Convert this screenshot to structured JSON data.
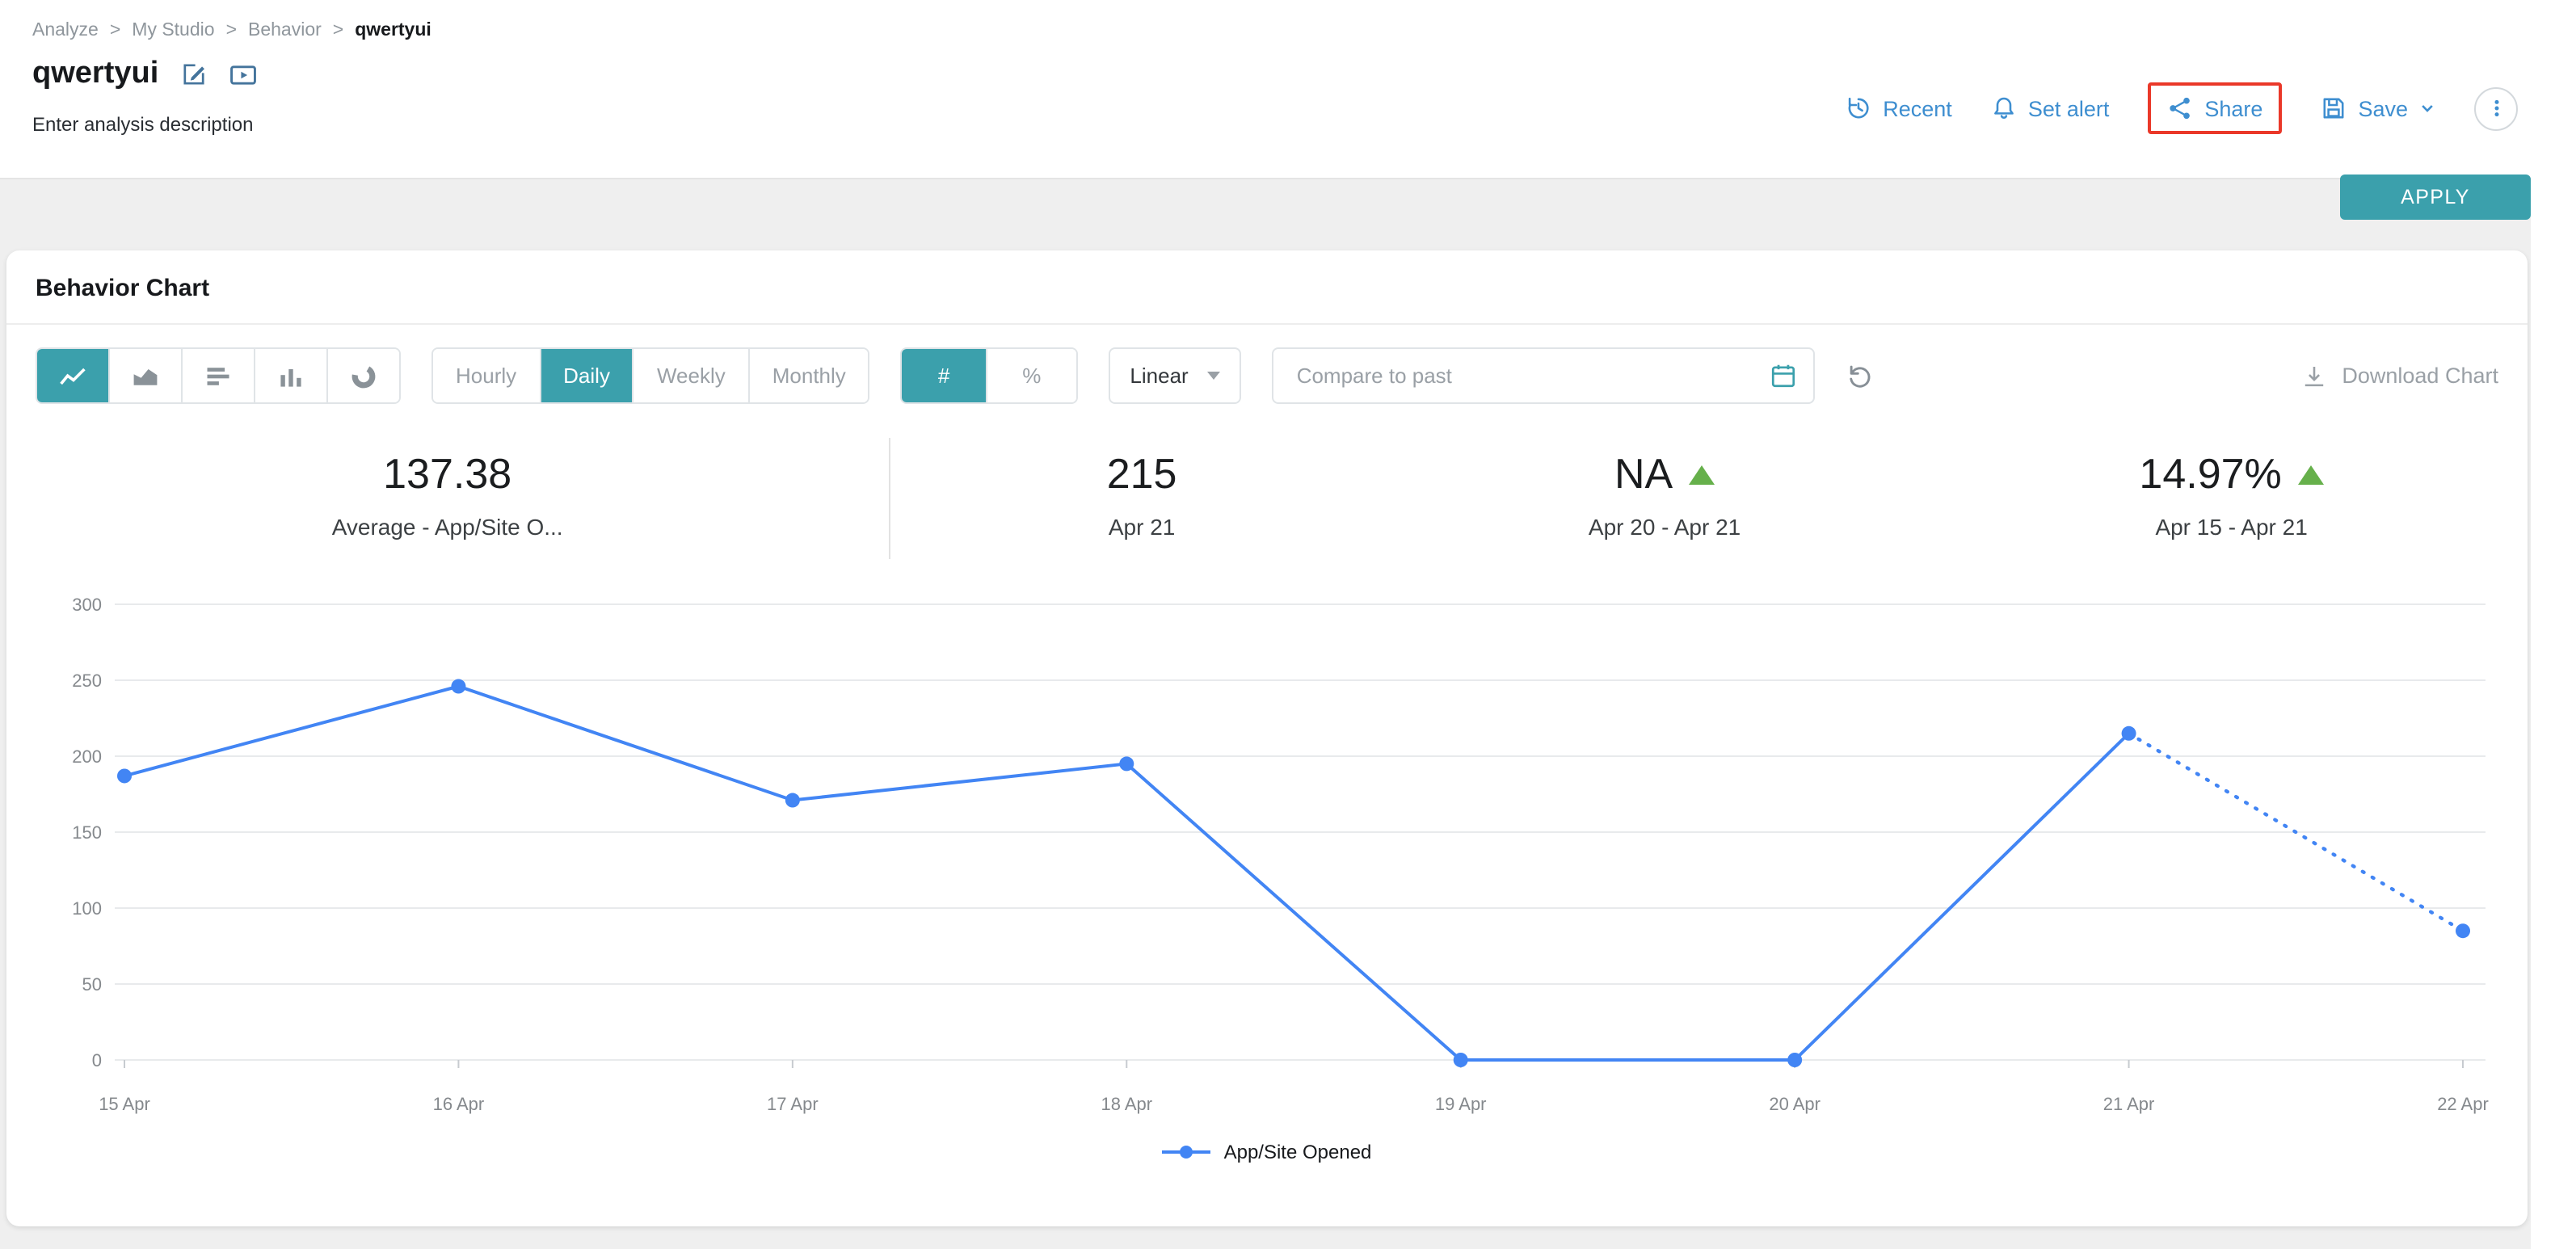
{
  "breadcrumb": {
    "items": [
      "Analyze",
      "My Studio",
      "Behavior",
      "qwertyui"
    ],
    "separator": ">"
  },
  "header": {
    "title": "qwertyui",
    "description": "Enter analysis description",
    "actions": {
      "recent": "Recent",
      "set_alert": "Set alert",
      "share": "Share",
      "save": "Save"
    }
  },
  "filter_bar": {
    "apply_label": "APPLY"
  },
  "chart_card": {
    "title": "Behavior Chart",
    "chart_types": [
      "line",
      "area",
      "horizontal-bar",
      "column",
      "donut"
    ],
    "chart_type_active": "line",
    "granularity": {
      "options": [
        "Hourly",
        "Daily",
        "Weekly",
        "Monthly"
      ],
      "active": "Daily"
    },
    "value_mode": {
      "options": [
        "#",
        "%"
      ],
      "active": "#"
    },
    "scale": "Linear",
    "compare_placeholder": "Compare to past",
    "download_label": "Download Chart"
  },
  "stats": [
    {
      "value": "137.38",
      "label": "Average - App/Site O...",
      "trend": null
    },
    {
      "value": "215",
      "label": "Apr 21",
      "trend": null
    },
    {
      "value": "NA",
      "label": "Apr 20 - Apr 21",
      "trend": "up"
    },
    {
      "value": "14.97%",
      "label": "Apr 15 - Apr 21",
      "trend": "up"
    }
  ],
  "chart_data": {
    "type": "line",
    "x": [
      "15 Apr",
      "16 Apr",
      "17 Apr",
      "18 Apr",
      "19 Apr",
      "20 Apr",
      "21 Apr",
      "22 Apr"
    ],
    "series": [
      {
        "name": "App/Site Opened",
        "values": [
          187,
          246,
          171,
          195,
          0,
          0,
          215,
          85
        ],
        "color": "#4285f4",
        "dotted_from_index": 6
      }
    ],
    "ylim": [
      0,
      300
    ],
    "yticks": [
      0,
      50,
      100,
      150,
      200,
      250,
      300
    ],
    "grid": true,
    "legend_position": "bottom"
  },
  "colors": {
    "accent_teal": "#3BA0AC",
    "link_blue": "#3E8ED0",
    "trend_up_green": "#66B04B",
    "line_blue": "#4285F4",
    "highlight_red": "#EA3829"
  }
}
